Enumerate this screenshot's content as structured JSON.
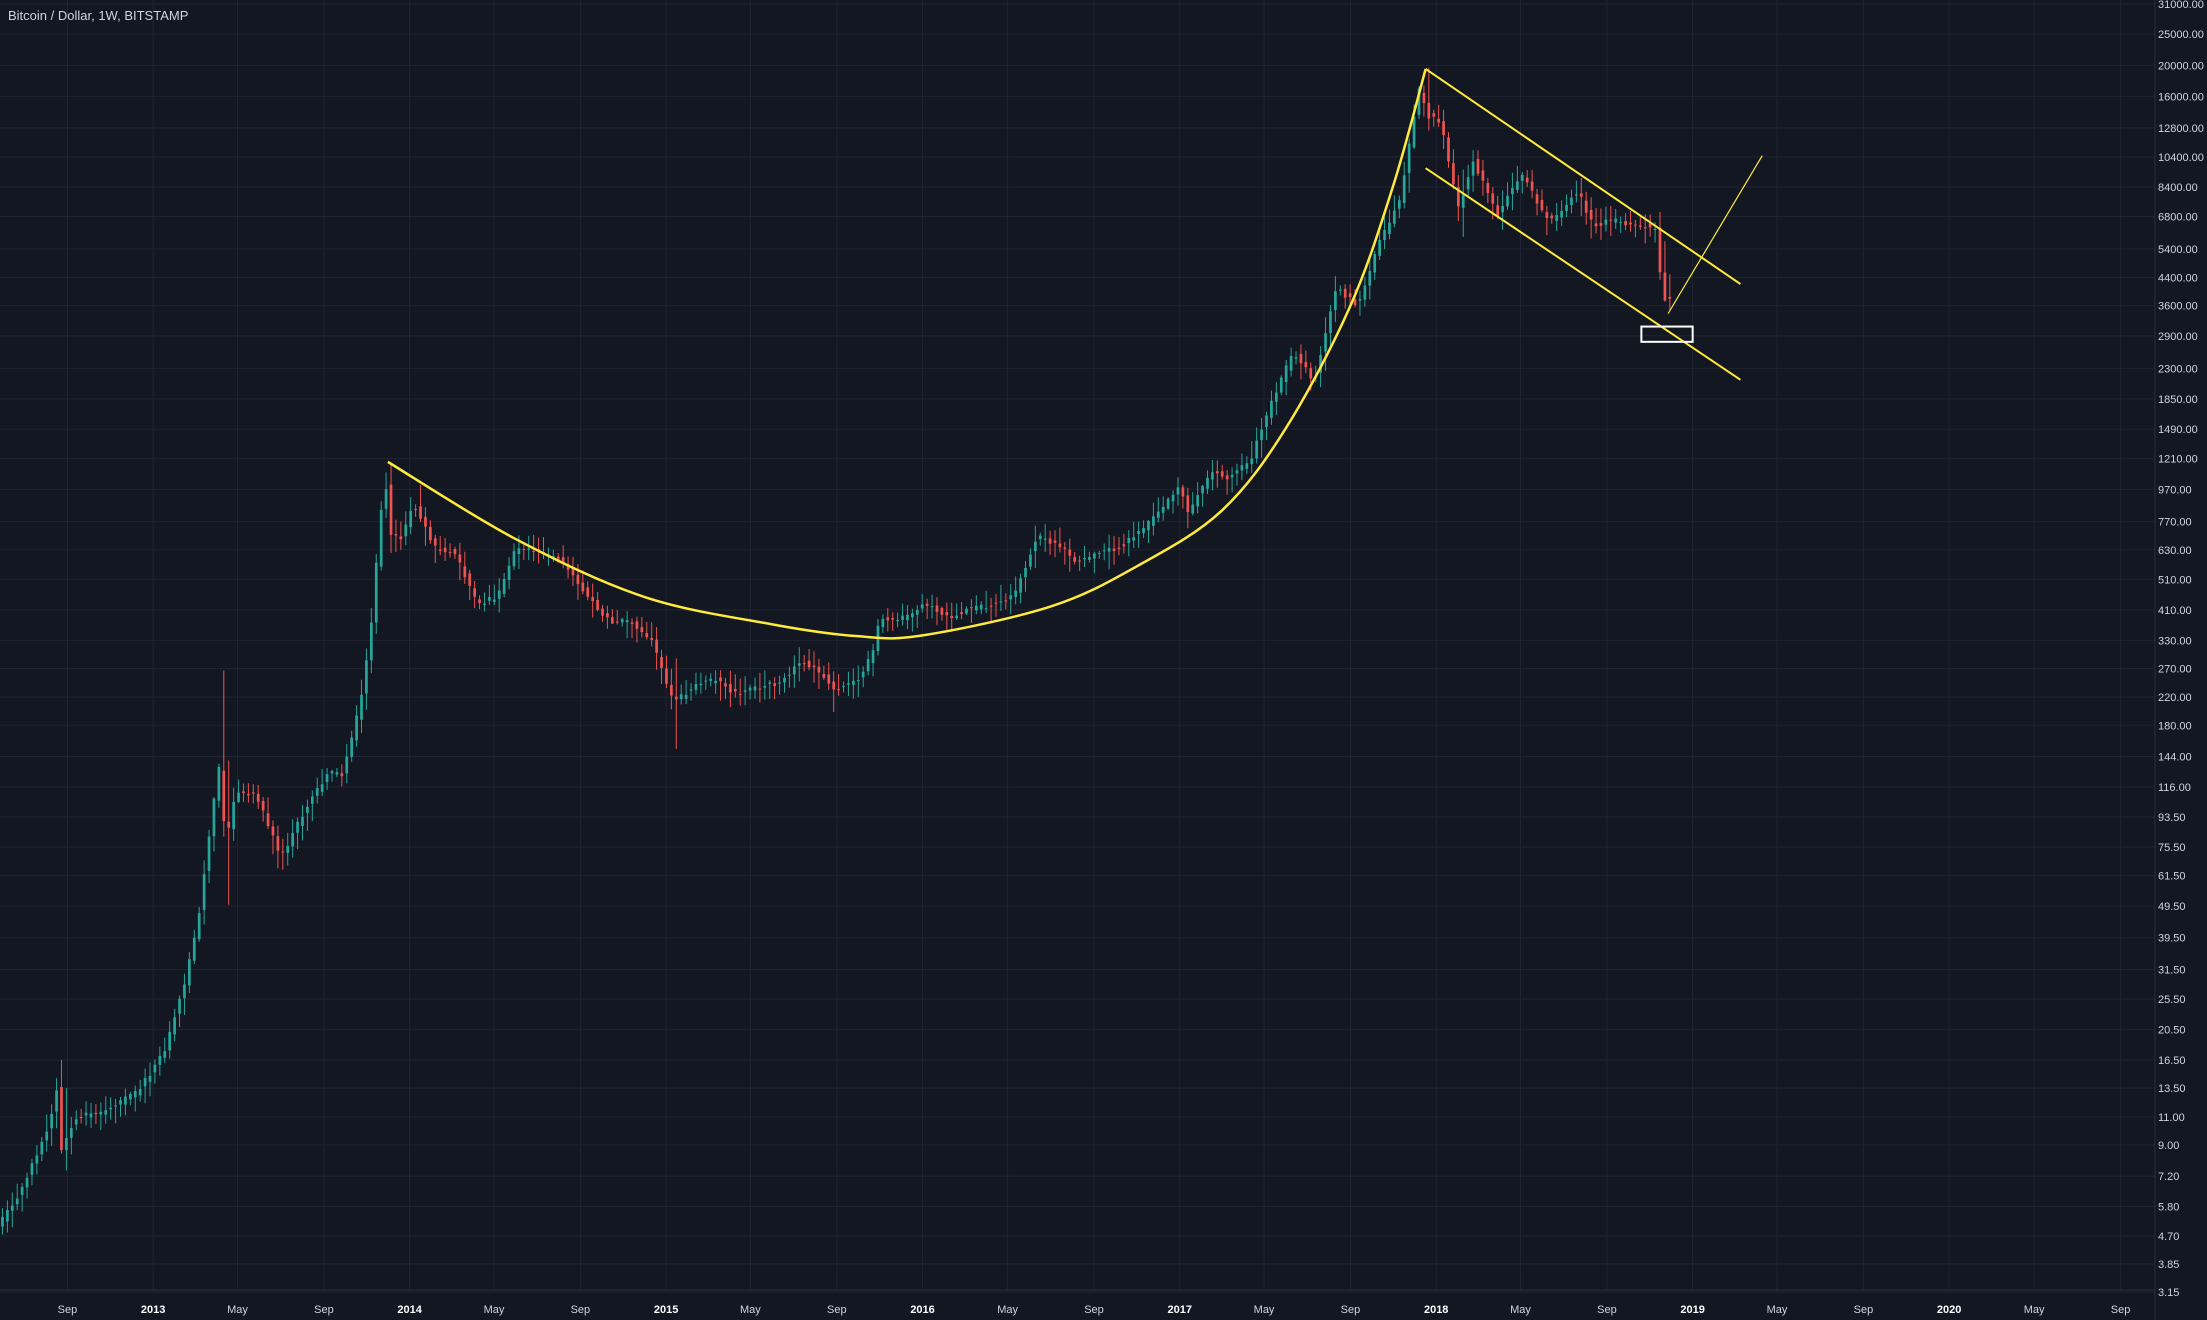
{
  "header": {
    "symbol_title": "Bitcoin / Dollar, 1W, BITSTAMP"
  },
  "colors": {
    "background": "#131722",
    "grid": "#1f2431",
    "text": "#d1d4dc",
    "up_candle": "#26a69a",
    "down_candle": "#ef5350",
    "drawing": "#ffeb3b",
    "marker_box": "#ffffff"
  },
  "chart_data": {
    "type": "candlestick",
    "title": "Bitcoin / Dollar, 1W, BITSTAMP",
    "scale": "log",
    "ylim": [
      3.15,
      31000
    ],
    "xlim": [
      "2012-05-28",
      "2020-10-20"
    ],
    "grid": true,
    "y_ticks": [
      "31000.00",
      "25000.00",
      "20000.00",
      "16000.00",
      "12800.00",
      "10400.00",
      "8400.00",
      "6800.00",
      "5400.00",
      "4400.00",
      "3600.00",
      "2900.00",
      "2300.00",
      "1850.00",
      "1490.00",
      "1210.00",
      "970.00",
      "770.00",
      "630.00",
      "510.00",
      "410.00",
      "330.00",
      "270.00",
      "220.00",
      "180.00",
      "144.00",
      "116.00",
      "93.50",
      "75.50",
      "61.50",
      "49.50",
      "39.50",
      "31.50",
      "25.50",
      "20.50",
      "16.50",
      "13.50",
      "11.00",
      "9.00",
      "7.20",
      "5.80",
      "4.70",
      "3.85",
      "3.15"
    ],
    "x_ticks": [
      {
        "label": "Sep",
        "date": "2012-09-01",
        "year": false
      },
      {
        "label": "2013",
        "date": "2013-01-01",
        "year": true
      },
      {
        "label": "May",
        "date": "2013-05-01",
        "year": false
      },
      {
        "label": "Sep",
        "date": "2013-09-01",
        "year": false
      },
      {
        "label": "2014",
        "date": "2014-01-01",
        "year": true
      },
      {
        "label": "May",
        "date": "2014-05-01",
        "year": false
      },
      {
        "label": "Sep",
        "date": "2014-09-01",
        "year": false
      },
      {
        "label": "2015",
        "date": "2015-01-01",
        "year": true
      },
      {
        "label": "May",
        "date": "2015-05-01",
        "year": false
      },
      {
        "label": "Sep",
        "date": "2015-09-01",
        "year": false
      },
      {
        "label": "2016",
        "date": "2016-01-01",
        "year": true
      },
      {
        "label": "May",
        "date": "2016-05-01",
        "year": false
      },
      {
        "label": "Sep",
        "date": "2016-09-01",
        "year": false
      },
      {
        "label": "2017",
        "date": "2017-01-01",
        "year": true
      },
      {
        "label": "May",
        "date": "2017-05-01",
        "year": false
      },
      {
        "label": "Sep",
        "date": "2017-09-01",
        "year": false
      },
      {
        "label": "2018",
        "date": "2018-01-01",
        "year": true
      },
      {
        "label": "May",
        "date": "2018-05-01",
        "year": false
      },
      {
        "label": "Sep",
        "date": "2018-09-01",
        "year": false
      },
      {
        "label": "2019",
        "date": "2019-01-01",
        "year": true
      },
      {
        "label": "May",
        "date": "2019-05-01",
        "year": false
      },
      {
        "label": "Sep",
        "date": "2019-09-01",
        "year": false
      },
      {
        "label": "2020",
        "date": "2020-01-01",
        "year": true
      },
      {
        "label": "May",
        "date": "2020-05-01",
        "year": false
      },
      {
        "label": "Sep",
        "date": "2020-09-01",
        "year": false
      }
    ],
    "price_path": [
      [
        "2012-05-28",
        5.0
      ],
      [
        "2012-07-01",
        6.5
      ],
      [
        "2012-08-10",
        10.5
      ],
      [
        "2012-08-20",
        13.5
      ],
      [
        "2012-08-25",
        8.5
      ],
      [
        "2012-09-15",
        11.0
      ],
      [
        "2012-11-01",
        11.5
      ],
      [
        "2012-12-15",
        13.3
      ],
      [
        "2013-01-20",
        17.5
      ],
      [
        "2013-02-20",
        29.5
      ],
      [
        "2013-03-10",
        46.0
      ],
      [
        "2013-03-28",
        92.0
      ],
      [
        "2013-04-10",
        140.0
      ],
      [
        "2013-04-17",
        75.0
      ],
      [
        "2013-05-01",
        112.0
      ],
      [
        "2013-06-01",
        108.0
      ],
      [
        "2013-07-05",
        70.0
      ],
      [
        "2013-08-10",
        100.0
      ],
      [
        "2013-09-10",
        128.0
      ],
      [
        "2013-10-01",
        127.0
      ],
      [
        "2013-10-25",
        205.0
      ],
      [
        "2013-11-10",
        350.0
      ],
      [
        "2013-11-24",
        820.0
      ],
      [
        "2013-12-01",
        1050.0
      ],
      [
        "2013-12-08",
        700.0
      ],
      [
        "2013-12-22",
        680.0
      ],
      [
        "2014-01-10",
        870.0
      ],
      [
        "2014-02-10",
        640.0
      ],
      [
        "2014-03-10",
        620.0
      ],
      [
        "2014-04-10",
        430.0
      ],
      [
        "2014-05-10",
        450.0
      ],
      [
        "2014-06-05",
        640.0
      ],
      [
        "2014-07-05",
        620.0
      ],
      [
        "2014-08-10",
        580.0
      ],
      [
        "2014-09-15",
        450.0
      ],
      [
        "2014-10-15",
        380.0
      ],
      [
        "2014-11-15",
        375.0
      ],
      [
        "2014-12-15",
        330.0
      ],
      [
        "2015-01-15",
        210.0
      ],
      [
        "2015-02-15",
        240.0
      ],
      [
        "2015-03-15",
        250.0
      ],
      [
        "2015-04-15",
        225.0
      ],
      [
        "2015-05-15",
        235.0
      ],
      [
        "2015-06-15",
        245.0
      ],
      [
        "2015-07-15",
        285.0
      ],
      [
        "2015-08-15",
        260.0
      ],
      [
        "2015-09-01",
        230.0
      ],
      [
        "2015-10-01",
        245.0
      ],
      [
        "2015-10-25",
        300.0
      ],
      [
        "2015-11-05",
        390.0
      ],
      [
        "2015-12-01",
        380.0
      ],
      [
        "2016-01-10",
        430.0
      ],
      [
        "2016-02-10",
        390.0
      ],
      [
        "2016-03-10",
        415.0
      ],
      [
        "2016-04-10",
        425.0
      ],
      [
        "2016-05-15",
        460.0
      ],
      [
        "2016-06-15",
        690.0
      ],
      [
        "2016-07-15",
        660.0
      ],
      [
        "2016-08-10",
        580.0
      ],
      [
        "2016-09-10",
        610.0
      ],
      [
        "2016-10-15",
        650.0
      ],
      [
        "2016-11-15",
        735.0
      ],
      [
        "2016-12-25",
        920.0
      ],
      [
        "2017-01-05",
        1000.0
      ],
      [
        "2017-01-15",
        820.0
      ],
      [
        "2017-02-20",
        1100.0
      ],
      [
        "2017-03-15",
        1050.0
      ],
      [
        "2017-04-15",
        1200.0
      ],
      [
        "2017-05-15",
        1800.0
      ],
      [
        "2017-06-15",
        2600.0
      ],
      [
        "2017-07-15",
        2100.0
      ],
      [
        "2017-08-15",
        4100.0
      ],
      [
        "2017-09-15",
        3600.0
      ],
      [
        "2017-10-15",
        5600.0
      ],
      [
        "2017-11-15",
        7800.0
      ],
      [
        "2017-12-10",
        17000.0
      ],
      [
        "2017-12-24",
        14000.0
      ],
      [
        "2018-01-10",
        13500.0
      ],
      [
        "2018-02-05",
        7200.0
      ],
      [
        "2018-02-25",
        10200.0
      ],
      [
        "2018-04-01",
        6900.0
      ],
      [
        "2018-05-05",
        9300.0
      ],
      [
        "2018-06-15",
        6500.0
      ],
      [
        "2018-07-25",
        8200.0
      ],
      [
        "2018-08-15",
        6400.0
      ],
      [
        "2018-09-15",
        6600.0
      ],
      [
        "2018-10-15",
        6400.0
      ],
      [
        "2018-11-12",
        6300.0
      ],
      [
        "2018-11-19",
        4500.0
      ],
      [
        "2018-11-26",
        3800.0
      ]
    ],
    "extremes": [
      {
        "date": "2012-08-17",
        "high": 16.5,
        "low": 13.0
      },
      {
        "date": "2012-08-24",
        "high": 13.5,
        "low": 7.5
      },
      {
        "date": "2013-04-10",
        "high": 266.0,
        "low": 90.0
      },
      {
        "date": "2013-04-17",
        "high": 140.0,
        "low": 50.0
      },
      {
        "date": "2013-12-01",
        "high": 1163.0,
        "low": 800.0
      },
      {
        "date": "2014-01-12",
        "high": 1000.0,
        "low": 800.0
      },
      {
        "date": "2015-01-14",
        "high": 290.0,
        "low": 152.0
      },
      {
        "date": "2015-08-24",
        "high": 235.0,
        "low": 198.0
      },
      {
        "date": "2017-12-17",
        "high": 19666.0,
        "low": 15000.0
      },
      {
        "date": "2018-02-05",
        "high": 9500.0,
        "low": 5873.0
      },
      {
        "date": "2018-11-19",
        "high": 5700.0,
        "low": 3800.0
      },
      {
        "date": "2018-11-26",
        "high": 4500.0,
        "low": 3500.0
      }
    ],
    "drawings": [
      {
        "kind": "curve",
        "points": [
          [
            "2013-12-01",
            1180
          ],
          [
            "2014-06-01",
            680
          ],
          [
            "2014-12-01",
            450
          ],
          [
            "2015-06-01",
            370
          ],
          [
            "2015-09-30",
            340
          ],
          [
            "2016-01-01",
            342
          ],
          [
            "2016-07-01",
            420
          ],
          [
            "2016-11-01",
            560
          ],
          [
            "2017-03-01",
            830
          ],
          [
            "2017-06-01",
            1500
          ],
          [
            "2017-09-01",
            3600
          ],
          [
            "2017-11-01",
            8500
          ],
          [
            "2017-12-17",
            19500
          ]
        ]
      },
      {
        "kind": "line",
        "points": [
          [
            "2017-12-17",
            19500
          ],
          [
            "2019-03-10",
            4200
          ]
        ],
        "width": 2
      },
      {
        "kind": "line",
        "points": [
          [
            "2017-12-17",
            9600
          ],
          [
            "2019-03-10",
            2120
          ]
        ],
        "width": 2
      },
      {
        "kind": "line",
        "points": [
          [
            "2018-11-27",
            3400
          ],
          [
            "2019-04-10",
            10500
          ]
        ],
        "width": 1.2
      },
      {
        "kind": "rect",
        "from": [
          "2018-10-20",
          3100
        ],
        "to": [
          "2019-01-01",
          2780
        ]
      }
    ]
  }
}
